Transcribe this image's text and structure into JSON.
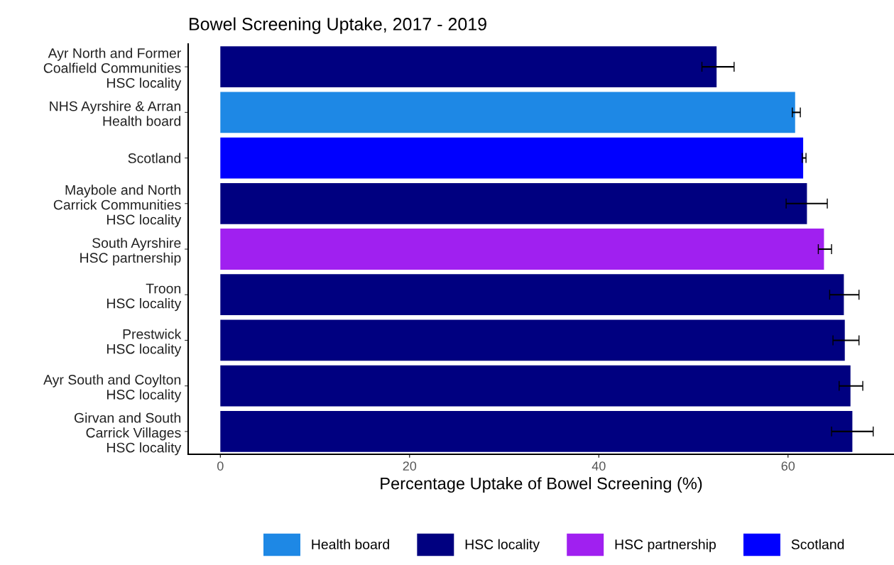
{
  "chart_data": {
    "type": "bar",
    "orientation": "horizontal",
    "title": "Bowel Screening Uptake, 2017 - 2019",
    "xlabel": "Percentage Uptake of Bowel Screening (%)",
    "categories": [
      "Ayr North and Former\nCoalfield Communities\nHSC locality",
      "NHS Ayrshire & Arran\nHealth board",
      "Scotland",
      "Maybole and North\nCarrick Communities\nHSC locality",
      "South Ayrshire\nHSC partnership",
      "Troon\nHSC locality",
      "Prestwick\nHSC locality",
      "Ayr South and Coylton\nHSC locality",
      "Girvan and South\nCarrick Villages\nHSC locality"
    ],
    "series": [
      {
        "name": "Health board",
        "color": "#1e88e5",
        "values": [
          null,
          60.75,
          null,
          null,
          null,
          null,
          null,
          null,
          null
        ],
        "errors": [
          null,
          [
            60.45,
            61.3
          ],
          null,
          null,
          null,
          null,
          null,
          null,
          null
        ]
      },
      {
        "name": "HSC locality",
        "color": "#000080",
        "values": [
          52.45,
          null,
          null,
          62.0,
          null,
          65.9,
          66.0,
          66.6,
          66.8
        ],
        "errors": [
          [
            50.9,
            54.3
          ],
          null,
          null,
          [
            59.8,
            64.15
          ],
          null,
          [
            64.4,
            67.5
          ],
          [
            64.75,
            67.5
          ],
          [
            65.4,
            67.9
          ],
          [
            64.6,
            69.0
          ]
        ]
      },
      {
        "name": "HSC partnership",
        "color": "#a020f0",
        "values": [
          null,
          null,
          null,
          null,
          63.8,
          null,
          null,
          null,
          null
        ],
        "errors": [
          null,
          null,
          null,
          null,
          [
            63.2,
            64.6
          ],
          null,
          null,
          null,
          null
        ]
      },
      {
        "name": "Scotland",
        "color": "#0000ff",
        "values": [
          null,
          null,
          61.6,
          null,
          null,
          null,
          null,
          null,
          null
        ],
        "errors": [
          null,
          null,
          [
            61.5,
            61.9
          ],
          null,
          null,
          null,
          null,
          null,
          null
        ]
      }
    ],
    "xlim": [
      -3.4,
      71.2
    ],
    "xticks": [
      0,
      20,
      40,
      60
    ],
    "grid": false,
    "legend": "bottom"
  }
}
